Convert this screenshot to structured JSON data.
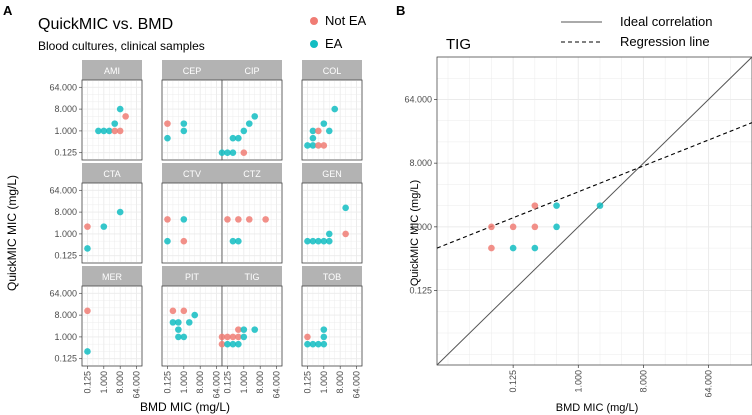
{
  "panel_a": {
    "label": "A",
    "title": "QuickMIC vs. BMD",
    "subtitle": "Blood cultures, clinical samples",
    "legend": [
      {
        "label": "Not EA",
        "color": "#f07c74"
      },
      {
        "label": "EA",
        "color": "#12bdc2"
      }
    ]
  },
  "panel_b": {
    "label": "B",
    "legend": [
      {
        "label": "Ideal correlation",
        "line": "solid"
      },
      {
        "label": "Regression line",
        "line": "dashed"
      }
    ]
  },
  "colors": {
    "not_ea": "#f07c74",
    "ea": "#12bdc2",
    "strip_bg": "#b3b3b3",
    "strip_text": "#ffffff",
    "grid": "#ebebeb",
    "border": "#333333"
  },
  "chart_data": [
    {
      "type": "scatter",
      "title": "QuickMIC vs. BMD",
      "subtitle": "Blood cultures, clinical samples",
      "xlabel": "BMD MIC (mg/L)",
      "ylabel": "QuickMIC MIC (mg/L)",
      "scale": "log2",
      "xlim": [
        0.0625,
        128
      ],
      "ylim": [
        0.0625,
        128
      ],
      "ticks": [
        0.125,
        1.0,
        8.0,
        64.0
      ],
      "tick_labels": [
        "0.125",
        "1.000",
        "8.000",
        "64.000"
      ],
      "facets": [
        {
          "name": "AMI",
          "points": [
            {
              "x": 0.5,
              "y": 1,
              "ea": true
            },
            {
              "x": 1,
              "y": 1,
              "ea": true
            },
            {
              "x": 2,
              "y": 1,
              "ea": true
            },
            {
              "x": 4,
              "y": 1,
              "ea": false
            },
            {
              "x": 4,
              "y": 2,
              "ea": true
            },
            {
              "x": 8,
              "y": 1,
              "ea": false
            },
            {
              "x": 8,
              "y": 8,
              "ea": true
            },
            {
              "x": 16,
              "y": 4,
              "ea": false
            }
          ]
        },
        {
          "name": "CEP",
          "points": [
            {
              "x": 0.125,
              "y": 2,
              "ea": false
            },
            {
              "x": 0.125,
              "y": 0.5,
              "ea": true
            },
            {
              "x": 1,
              "y": 1,
              "ea": true
            },
            {
              "x": 1,
              "y": 2,
              "ea": true
            }
          ]
        },
        {
          "name": "CIP",
          "points": [
            {
              "x": 0.0625,
              "y": 0.125,
              "ea": true
            },
            {
              "x": 0.125,
              "y": 0.125,
              "ea": true
            },
            {
              "x": 0.25,
              "y": 0.125,
              "ea": true
            },
            {
              "x": 0.25,
              "y": 0.5,
              "ea": true
            },
            {
              "x": 0.5,
              "y": 0.5,
              "ea": true
            },
            {
              "x": 1,
              "y": 0.125,
              "ea": false
            },
            {
              "x": 1,
              "y": 1,
              "ea": true
            },
            {
              "x": 2,
              "y": 2,
              "ea": true
            },
            {
              "x": 4,
              "y": 4,
              "ea": true
            }
          ]
        },
        {
          "name": "COL",
          "points": [
            {
              "x": 0.125,
              "y": 0.25,
              "ea": true
            },
            {
              "x": 0.25,
              "y": 0.25,
              "ea": true
            },
            {
              "x": 0.25,
              "y": 0.5,
              "ea": true
            },
            {
              "x": 0.25,
              "y": 1,
              "ea": true
            },
            {
              "x": 0.5,
              "y": 0.25,
              "ea": false
            },
            {
              "x": 0.5,
              "y": 1,
              "ea": false
            },
            {
              "x": 1,
              "y": 0.25,
              "ea": false
            },
            {
              "x": 1,
              "y": 2,
              "ea": true
            },
            {
              "x": 2,
              "y": 1,
              "ea": true
            },
            {
              "x": 4,
              "y": 8,
              "ea": true
            }
          ]
        },
        {
          "name": "CTA",
          "points": [
            {
              "x": 0.125,
              "y": 2,
              "ea": false
            },
            {
              "x": 0.125,
              "y": 0.25,
              "ea": true
            },
            {
              "x": 1,
              "y": 2,
              "ea": true
            },
            {
              "x": 8,
              "y": 8,
              "ea": true
            }
          ]
        },
        {
          "name": "CTV",
          "points": [
            {
              "x": 0.125,
              "y": 4,
              "ea": false
            },
            {
              "x": 0.125,
              "y": 0.5,
              "ea": true
            },
            {
              "x": 1,
              "y": 0.5,
              "ea": false
            },
            {
              "x": 1,
              "y": 4,
              "ea": true
            }
          ]
        },
        {
          "name": "CTZ",
          "points": [
            {
              "x": 0.125,
              "y": 4,
              "ea": false
            },
            {
              "x": 0.25,
              "y": 0.5,
              "ea": true
            },
            {
              "x": 0.5,
              "y": 0.5,
              "ea": true
            },
            {
              "x": 0.5,
              "y": 4,
              "ea": false
            },
            {
              "x": 2,
              "y": 4,
              "ea": false
            },
            {
              "x": 16,
              "y": 4,
              "ea": false
            }
          ]
        },
        {
          "name": "GEN",
          "points": [
            {
              "x": 0.125,
              "y": 0.5,
              "ea": true
            },
            {
              "x": 0.25,
              "y": 0.5,
              "ea": true
            },
            {
              "x": 0.5,
              "y": 0.5,
              "ea": true
            },
            {
              "x": 1,
              "y": 0.5,
              "ea": true
            },
            {
              "x": 2,
              "y": 0.5,
              "ea": true
            },
            {
              "x": 2,
              "y": 1,
              "ea": true
            },
            {
              "x": 16,
              "y": 1,
              "ea": false
            },
            {
              "x": 16,
              "y": 12,
              "ea": true
            }
          ]
        },
        {
          "name": "MER",
          "points": [
            {
              "x": 0.125,
              "y": 12,
              "ea": false
            },
            {
              "x": 0.125,
              "y": 0.25,
              "ea": true
            }
          ]
        },
        {
          "name": "PIT",
          "points": [
            {
              "x": 0.25,
              "y": 4,
              "ea": true
            },
            {
              "x": 0.25,
              "y": 12,
              "ea": false
            },
            {
              "x": 0.5,
              "y": 1,
              "ea": true
            },
            {
              "x": 0.5,
              "y": 2,
              "ea": true
            },
            {
              "x": 0.5,
              "y": 4,
              "ea": true
            },
            {
              "x": 1,
              "y": 1,
              "ea": true
            },
            {
              "x": 1,
              "y": 12,
              "ea": false
            },
            {
              "x": 2,
              "y": 4,
              "ea": true
            },
            {
              "x": 4,
              "y": 8,
              "ea": true
            }
          ]
        },
        {
          "name": "TIG",
          "points": [
            {
              "x": 0.0625,
              "y": 0.5,
              "ea": false
            },
            {
              "x": 0.0625,
              "y": 1,
              "ea": false
            },
            {
              "x": 0.125,
              "y": 0.5,
              "ea": true
            },
            {
              "x": 0.125,
              "y": 1,
              "ea": false
            },
            {
              "x": 0.25,
              "y": 1,
              "ea": false
            },
            {
              "x": 0.25,
              "y": 0.5,
              "ea": true
            },
            {
              "x": 0.5,
              "y": 1,
              "ea": false
            },
            {
              "x": 0.5,
              "y": 2,
              "ea": false
            },
            {
              "x": 0.5,
              "y": 0.5,
              "ea": true
            },
            {
              "x": 1,
              "y": 1,
              "ea": true
            },
            {
              "x": 1,
              "y": 2,
              "ea": true
            },
            {
              "x": 4,
              "y": 2,
              "ea": true
            }
          ]
        },
        {
          "name": "TOB",
          "points": [
            {
              "x": 0.125,
              "y": 1,
              "ea": false
            },
            {
              "x": 0.125,
              "y": 0.5,
              "ea": true
            },
            {
              "x": 0.25,
              "y": 0.5,
              "ea": true
            },
            {
              "x": 0.5,
              "y": 0.5,
              "ea": true
            },
            {
              "x": 1,
              "y": 0.5,
              "ea": true
            },
            {
              "x": 1,
              "y": 1,
              "ea": true
            },
            {
              "x": 1,
              "y": 2,
              "ea": true
            }
          ]
        }
      ]
    },
    {
      "type": "scatter",
      "title": "TIG",
      "xlabel": "BMD MIC (mg/L)",
      "ylabel": "QuickMIC MIC (mg/L)",
      "scale": "log2",
      "xlim": [
        0.011,
        256
      ],
      "ylim": [
        0.011,
        256
      ],
      "ticks": [
        0.125,
        1.0,
        8.0,
        64.0
      ],
      "tick_labels": [
        "0.125",
        "1.000",
        "8.000",
        "64.000"
      ],
      "ideal_line": {
        "slope": 1,
        "intercept": 0
      },
      "regression_line": {
        "x": [
          0.011,
          256
        ],
        "y": [
          0.5,
          30
        ]
      },
      "points": [
        {
          "x": 0.0625,
          "y": 1,
          "ea": false
        },
        {
          "x": 0.0625,
          "y": 0.5,
          "ea": false
        },
        {
          "x": 0.125,
          "y": 1,
          "ea": false
        },
        {
          "x": 0.125,
          "y": 0.5,
          "ea": true
        },
        {
          "x": 0.25,
          "y": 1,
          "ea": false
        },
        {
          "x": 0.25,
          "y": 2,
          "ea": false
        },
        {
          "x": 0.25,
          "y": 0.5,
          "ea": true
        },
        {
          "x": 0.5,
          "y": 1,
          "ea": true
        },
        {
          "x": 0.5,
          "y": 2,
          "ea": true
        },
        {
          "x": 2,
          "y": 2,
          "ea": true
        }
      ]
    }
  ]
}
